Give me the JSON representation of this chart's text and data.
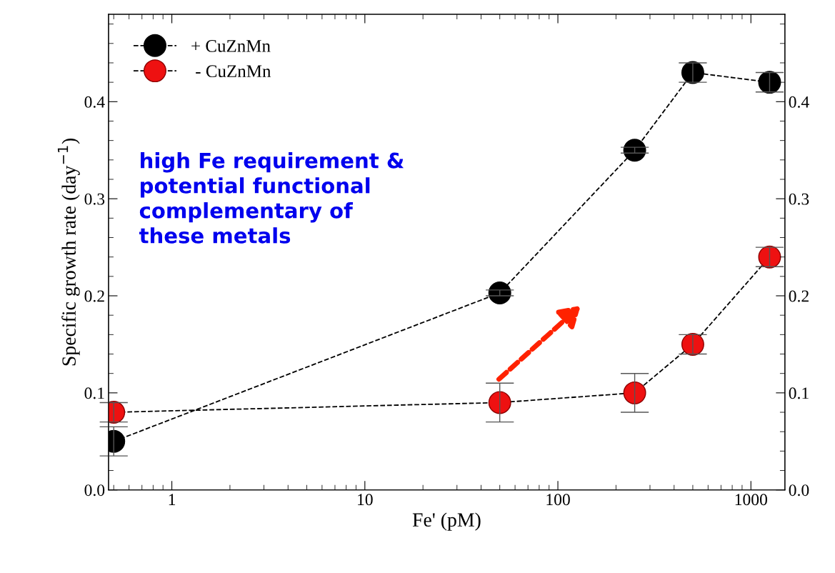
{
  "chart_data": {
    "type": "line",
    "xlabel": "Fe' (pM)",
    "ylabel": "Specific growth rate (day$^{−1}$)",
    "x": [
      0.5,
      50,
      250,
      500,
      1250
    ],
    "series": [
      {
        "name": "+ CuZnMn",
        "color": "#000000",
        "values": [
          0.05,
          0.203,
          0.35,
          0.43,
          0.42
        ],
        "errors": [
          0.015,
          0.003,
          0.003,
          0.01,
          0.01
        ]
      },
      {
        "name": " - CuZnMn",
        "color": "#ee1111",
        "values": [
          0.08,
          0.09,
          0.1,
          0.15,
          0.24
        ],
        "errors": [
          0.01,
          0.02,
          0.02,
          0.01,
          0.01
        ]
      }
    ],
    "log": "x",
    "xlim": [
      0.47,
      1500
    ],
    "xticks": [
      1,
      10,
      100,
      1000
    ],
    "ylim": [
      0,
      0.49
    ],
    "yticks": [
      {
        "value": 0,
        "label": "0.0"
      },
      0.1,
      0.2,
      0.3,
      0.4
    ],
    "y2lim": [
      0,
      0.49
    ],
    "y2ticks": [
      {
        "value": 0,
        "label": "0.0"
      },
      0.1,
      0.2,
      0.3,
      0.4
    ],
    "annotations": [
      "high Fe requirement &\npotential functional\ncomplementary of\nthese metals"
    ],
    "legend": "top left",
    "marker": "circle",
    "line_style": "dashed",
    "grid": false
  }
}
